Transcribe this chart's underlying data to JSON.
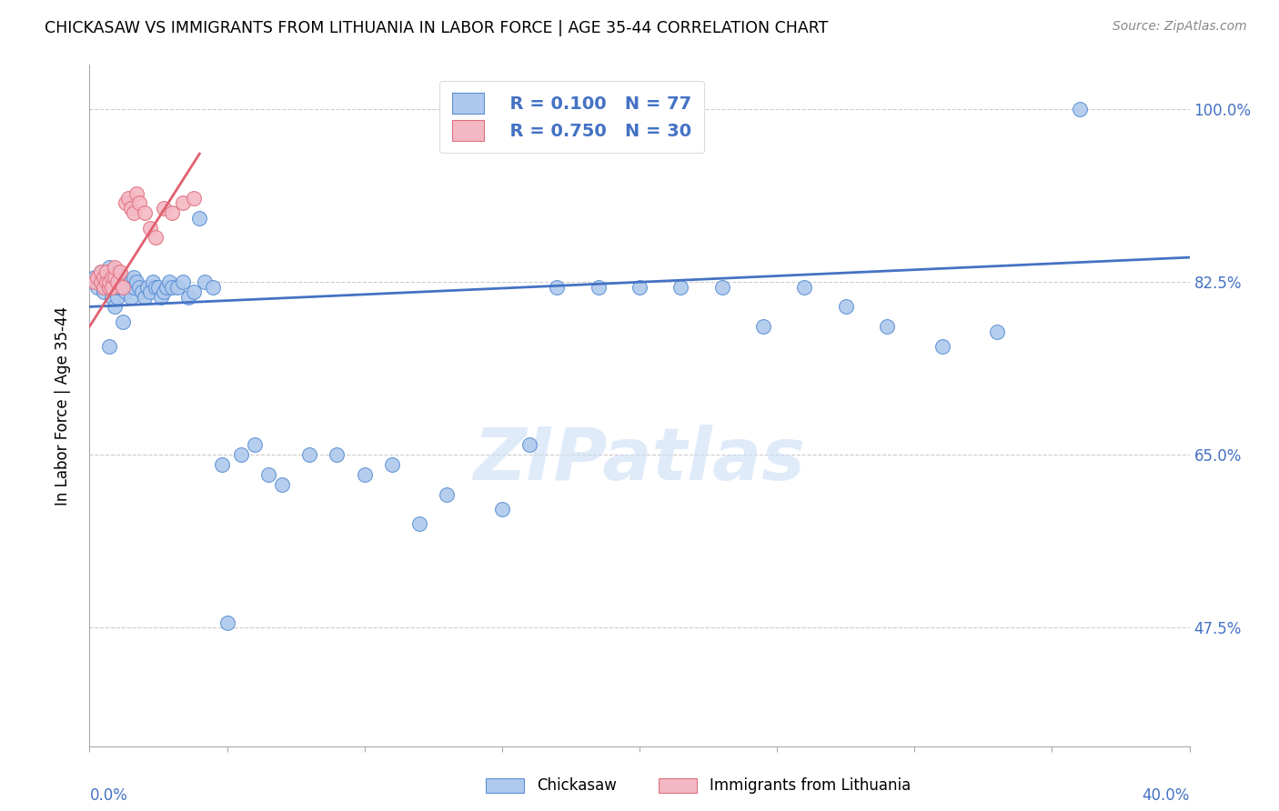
{
  "title": "CHICKASAW VS IMMIGRANTS FROM LITHUANIA IN LABOR FORCE | AGE 35-44 CORRELATION CHART",
  "source": "Source: ZipAtlas.com",
  "ylabel": "In Labor Force | Age 35-44",
  "legend_blue_label": "Chickasaw",
  "legend_pink_label": "Immigrants from Lithuania",
  "legend_r_blue": "R = 0.100",
  "legend_n_blue": "N = 77",
  "legend_r_pink": "R = 0.750",
  "legend_n_pink": "N = 30",
  "blue_color": "#aec9ed",
  "pink_color": "#f4b8c4",
  "blue_edge_color": "#5b8fd4",
  "pink_edge_color": "#e07080",
  "blue_line_color": "#4472c4",
  "pink_line_color": "#e06070",
  "text_blue": "#4472c4",
  "watermark": "ZIPatlas",
  "xlim": [
    0.0,
    0.4
  ],
  "ylim": [
    0.355,
    1.045
  ],
  "blue_scatter_x": [
    0.002,
    0.003,
    0.004,
    0.004,
    0.005,
    0.005,
    0.005,
    0.006,
    0.006,
    0.007,
    0.007,
    0.008,
    0.008,
    0.008,
    0.009,
    0.009,
    0.01,
    0.01,
    0.01,
    0.011,
    0.011,
    0.012,
    0.012,
    0.013,
    0.013,
    0.014,
    0.015,
    0.015,
    0.016,
    0.016,
    0.017,
    0.018,
    0.019,
    0.02,
    0.021,
    0.022,
    0.023,
    0.024,
    0.025,
    0.026,
    0.027,
    0.028,
    0.029,
    0.03,
    0.032,
    0.034,
    0.036,
    0.038,
    0.04,
    0.042,
    0.045,
    0.048,
    0.05,
    0.055,
    0.06,
    0.065,
    0.07,
    0.08,
    0.09,
    0.1,
    0.11,
    0.12,
    0.13,
    0.15,
    0.16,
    0.17,
    0.185,
    0.2,
    0.215,
    0.23,
    0.245,
    0.26,
    0.275,
    0.29,
    0.31,
    0.33,
    0.36
  ],
  "blue_scatter_y": [
    0.83,
    0.82,
    0.825,
    0.835,
    0.82,
    0.815,
    0.825,
    0.82,
    0.83,
    0.76,
    0.84,
    0.81,
    0.82,
    0.83,
    0.8,
    0.825,
    0.81,
    0.82,
    0.835,
    0.82,
    0.825,
    0.785,
    0.82,
    0.815,
    0.825,
    0.82,
    0.81,
    0.825,
    0.82,
    0.83,
    0.825,
    0.82,
    0.815,
    0.81,
    0.82,
    0.815,
    0.825,
    0.82,
    0.82,
    0.81,
    0.815,
    0.82,
    0.825,
    0.82,
    0.82,
    0.825,
    0.81,
    0.815,
    0.89,
    0.825,
    0.82,
    0.64,
    0.48,
    0.65,
    0.66,
    0.63,
    0.62,
    0.65,
    0.65,
    0.63,
    0.64,
    0.58,
    0.61,
    0.595,
    0.66,
    0.82,
    0.82,
    0.82,
    0.82,
    0.82,
    0.78,
    0.82,
    0.8,
    0.78,
    0.76,
    0.775,
    1.0
  ],
  "pink_scatter_x": [
    0.002,
    0.003,
    0.004,
    0.004,
    0.005,
    0.005,
    0.006,
    0.006,
    0.007,
    0.007,
    0.008,
    0.008,
    0.009,
    0.009,
    0.01,
    0.011,
    0.012,
    0.013,
    0.014,
    0.015,
    0.016,
    0.017,
    0.018,
    0.02,
    0.022,
    0.024,
    0.027,
    0.03,
    0.034,
    0.038
  ],
  "pink_scatter_y": [
    0.825,
    0.83,
    0.825,
    0.835,
    0.82,
    0.83,
    0.825,
    0.835,
    0.82,
    0.825,
    0.83,
    0.82,
    0.83,
    0.84,
    0.825,
    0.835,
    0.82,
    0.905,
    0.91,
    0.9,
    0.895,
    0.915,
    0.905,
    0.895,
    0.88,
    0.87,
    0.9,
    0.895,
    0.905,
    0.91
  ],
  "blue_line_x": [
    0.0,
    0.4
  ],
  "blue_line_y": [
    0.8,
    0.85
  ],
  "pink_line_x": [
    0.0,
    0.04
  ],
  "pink_line_y": [
    0.78,
    0.955
  ]
}
